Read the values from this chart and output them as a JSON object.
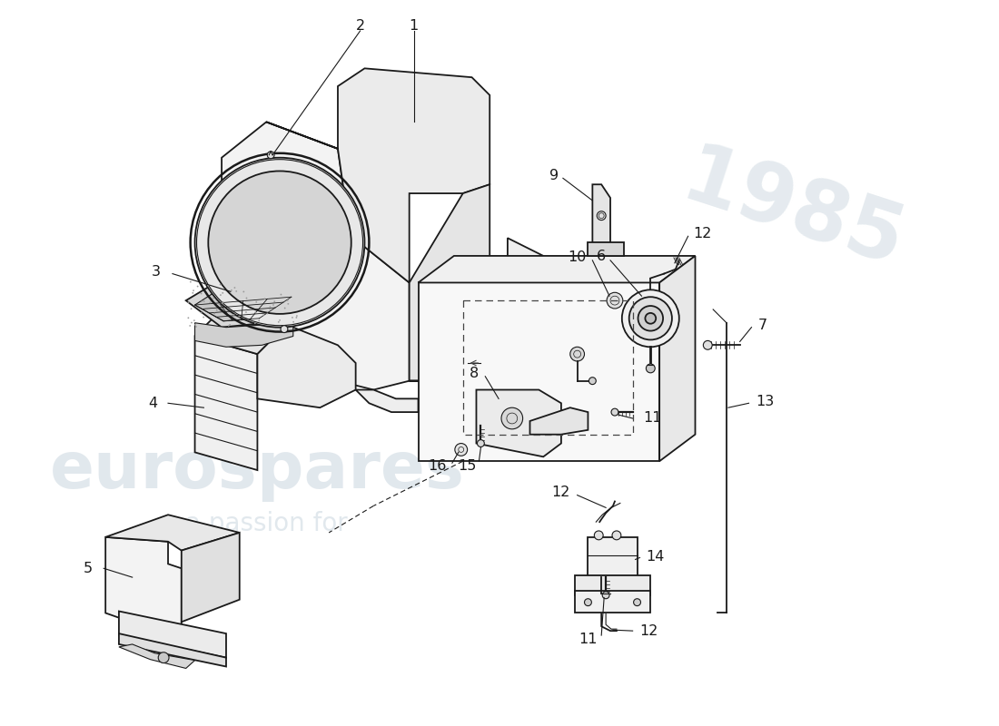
{
  "bg_color": "#ffffff",
  "line_color": "#1a1a1a",
  "lw": 1.3,
  "lwt": 0.8,
  "label_fs": 11.5,
  "wm_color": "#c5d2dc",
  "wm_alpha": 0.5
}
